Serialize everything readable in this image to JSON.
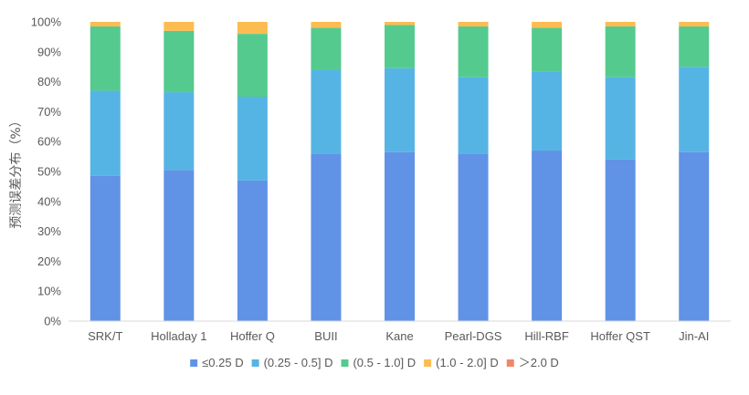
{
  "chart_data": {
    "type": "bar",
    "stacked": true,
    "title": "",
    "xlabel": "",
    "ylabel": "预测误差分布（%）",
    "ylim": [
      0,
      100
    ],
    "y_ticks": [
      "0%",
      "10%",
      "20%",
      "30%",
      "40%",
      "50%",
      "60%",
      "70%",
      "80%",
      "90%",
      "100%"
    ],
    "grid": false,
    "legend_position": "bottom",
    "categories": [
      "SRK/T",
      "Holladay 1",
      "Hoffer Q",
      "BUII",
      "Kane",
      "Pearl-DGS",
      "Hill-RBF",
      "Hoffer QST",
      "Jin-AI"
    ],
    "series": [
      {
        "name": "≤0.25 D",
        "color": "#6093E6",
        "values": [
          48.5,
          50.5,
          47.0,
          56.0,
          56.5,
          56.0,
          57.0,
          54.0,
          56.5
        ]
      },
      {
        "name": "(0.25 - 0.5] D",
        "color": "#56B4E4",
        "values": [
          28.5,
          26.0,
          28.0,
          28.0,
          28.0,
          25.5,
          26.5,
          27.5,
          28.5
        ]
      },
      {
        "name": "(0.5 - 1.0] D",
        "color": "#55CA8E",
        "values": [
          21.5,
          20.5,
          21.0,
          14.0,
          14.5,
          17.0,
          14.5,
          17.0,
          13.5
        ]
      },
      {
        "name": "(1.0 - 2.0] D",
        "color": "#FCBC51",
        "values": [
          1.5,
          3.0,
          4.0,
          2.0,
          1.0,
          1.5,
          2.0,
          1.5,
          1.5
        ]
      },
      {
        "name": "＞2.0 D",
        "color": "#F0866A",
        "values": [
          0,
          0,
          0,
          0,
          0,
          0,
          0,
          0,
          0
        ]
      }
    ]
  }
}
